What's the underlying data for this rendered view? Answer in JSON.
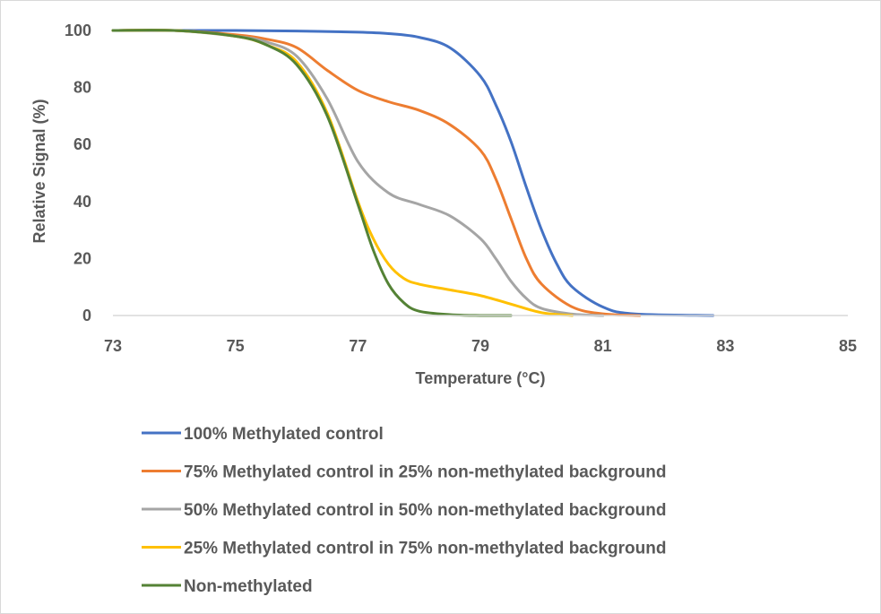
{
  "chart_data": {
    "type": "line",
    "xlabel": "Temperature (°C)",
    "ylabel": "Relative Signal (%)",
    "xlim": [
      73,
      85
    ],
    "ylim": [
      0,
      100
    ],
    "x_ticks": [
      "73",
      "75",
      "77",
      "79",
      "81",
      "83",
      "85"
    ],
    "y_ticks": [
      "0",
      "20",
      "40",
      "60",
      "80",
      "100"
    ],
    "grid": false,
    "legend": "bottom",
    "series": [
      {
        "name": "100% Methylated control",
        "color": "#4472C4",
        "x": [
          73,
          74,
          75,
          76,
          77,
          77.5,
          78,
          78.5,
          79,
          79.25,
          79.5,
          79.75,
          80,
          80.25,
          80.5,
          81,
          81.5,
          82.8
        ],
        "y": [
          100,
          100,
          100,
          99.8,
          99.4,
          98.9,
          97.6,
          94,
          84,
          74,
          61,
          45,
          30,
          18,
          10,
          3,
          0.6,
          0
        ]
      },
      {
        "name": "75% Methylated control in 25% non-methylated background",
        "color": "#ED7D31",
        "x": [
          73,
          74,
          75,
          75.5,
          76,
          76.5,
          77,
          77.5,
          78,
          78.5,
          79,
          79.25,
          79.5,
          79.75,
          80,
          80.5,
          81,
          81.6
        ],
        "y": [
          100,
          100,
          98.5,
          97,
          94,
          86,
          79,
          75,
          72,
          67,
          58,
          48,
          34,
          20,
          11,
          3,
          0.6,
          0
        ]
      },
      {
        "name": "50% Methylated control in 50% non-methylated background",
        "color": "#A5A5A5",
        "x": [
          73,
          74,
          75,
          75.5,
          76,
          76.5,
          77,
          77.5,
          78,
          78.5,
          79,
          79.25,
          79.5,
          79.75,
          80,
          80.5,
          81
        ],
        "y": [
          100,
          100,
          98,
          96,
          91,
          76,
          54,
          43,
          39,
          35,
          27,
          20,
          12,
          6,
          2.5,
          0.5,
          0
        ]
      },
      {
        "name": "25% Methylated control in 75% non-methylated background",
        "color": "#FFC000",
        "x": [
          73,
          74,
          75,
          75.5,
          76,
          76.5,
          77,
          77.25,
          77.5,
          77.75,
          78,
          78.5,
          79,
          79.5,
          80,
          80.5
        ],
        "y": [
          100,
          100,
          98,
          95,
          89,
          71,
          40,
          27,
          18,
          13,
          11,
          9,
          7,
          4,
          1,
          0
        ]
      },
      {
        "name": "Non-methylated",
        "color": "#548235",
        "x": [
          73,
          74,
          75,
          75.5,
          76,
          76.5,
          77,
          77.25,
          77.5,
          77.75,
          78,
          78.5,
          79,
          79.5
        ],
        "y": [
          100,
          100,
          98,
          95,
          88,
          70,
          39,
          23,
          11,
          4.5,
          1.5,
          0.3,
          0,
          0
        ]
      }
    ]
  }
}
